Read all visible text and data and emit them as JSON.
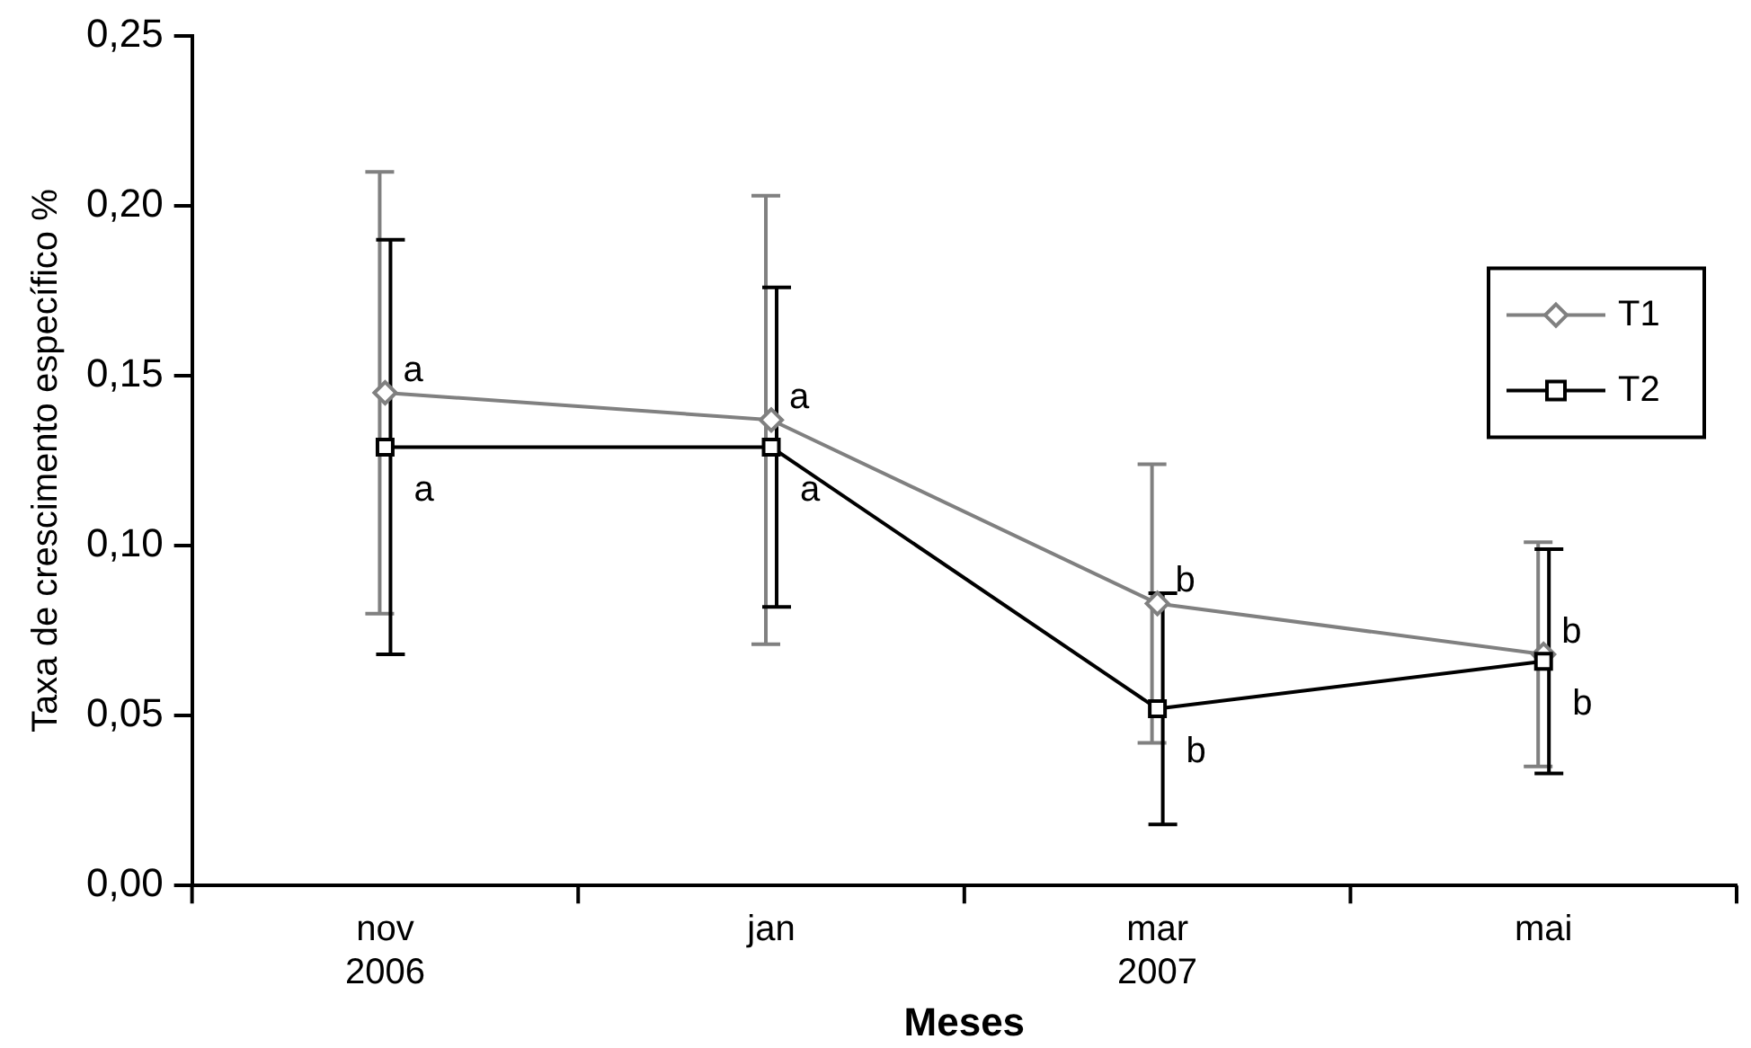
{
  "chart_data": {
    "type": "line",
    "xlabel": "Meses",
    "ylabel": "Taxa de crescimento específico %",
    "categories": [
      "nov\n2006",
      "jan",
      "mar\n2007",
      "mai"
    ],
    "series": [
      {
        "name": "T1",
        "color": "#808080",
        "marker": "diamond",
        "values": [
          0.145,
          0.137,
          0.083,
          0.068
        ],
        "errors": [
          0.065,
          0.066,
          0.041,
          0.033
        ]
      },
      {
        "name": "T2",
        "color": "#000000",
        "marker": "square",
        "values": [
          0.129,
          0.129,
          0.052,
          0.066
        ],
        "errors": [
          0.061,
          0.047,
          0.034,
          0.033
        ]
      }
    ],
    "ylim": [
      0,
      0.25
    ],
    "yticks": [
      {
        "value": 0,
        "label": "0,00"
      },
      {
        "value": 0.05,
        "label": "0,05"
      },
      {
        "value": 0.1,
        "label": "0,10"
      },
      {
        "value": 0.15,
        "label": "0,15"
      },
      {
        "value": 0.2,
        "label": "0,20"
      },
      {
        "value": 0.25,
        "label": "0,25"
      }
    ],
    "annotations": [
      {
        "text": "a",
        "x": "nov\n2006",
        "y": 0.145
      },
      {
        "text": "a",
        "x": "nov\n2006",
        "y": 0.129
      },
      {
        "text": "a",
        "x": "jan",
        "y": 0.137
      },
      {
        "text": "a",
        "x": "jan",
        "y": 0.129
      },
      {
        "text": "b",
        "x": "mar\n2007",
        "y": 0.083
      },
      {
        "text": "b",
        "x": "mar\n2007",
        "y": 0.052
      },
      {
        "text": "b",
        "x": "mai",
        "y": 0.068
      },
      {
        "text": "b",
        "x": "mai",
        "y": 0.066
      }
    ],
    "legend": "right",
    "grid": false
  }
}
